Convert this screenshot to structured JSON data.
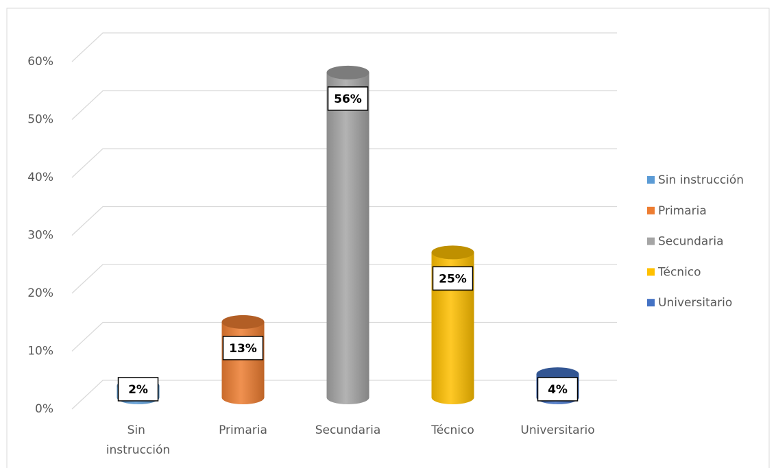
{
  "chart_data": {
    "type": "bar3d",
    "categories": [
      "Sin instrucción",
      "Primaria",
      "Secundaria",
      "Técnico",
      "Universitario"
    ],
    "values": [
      2,
      13,
      56,
      25,
      4
    ],
    "value_labels": [
      "2%",
      "13%",
      "56%",
      "25%",
      "4%"
    ],
    "colors": [
      "#5b9bd5",
      "#ed7d31",
      "#a5a5a5",
      "#ffc000",
      "#4472c4"
    ],
    "ylim": [
      0,
      60
    ],
    "yticks": [
      {
        "value": 0,
        "label": "0%"
      },
      {
        "value": 10,
        "label": "10%"
      },
      {
        "value": 20,
        "label": "20%"
      },
      {
        "value": 30,
        "label": "30%"
      },
      {
        "value": 40,
        "label": "40%"
      },
      {
        "value": 50,
        "label": "50%"
      },
      {
        "value": 60,
        "label": "60%"
      }
    ],
    "grid": true,
    "legend": "right"
  }
}
